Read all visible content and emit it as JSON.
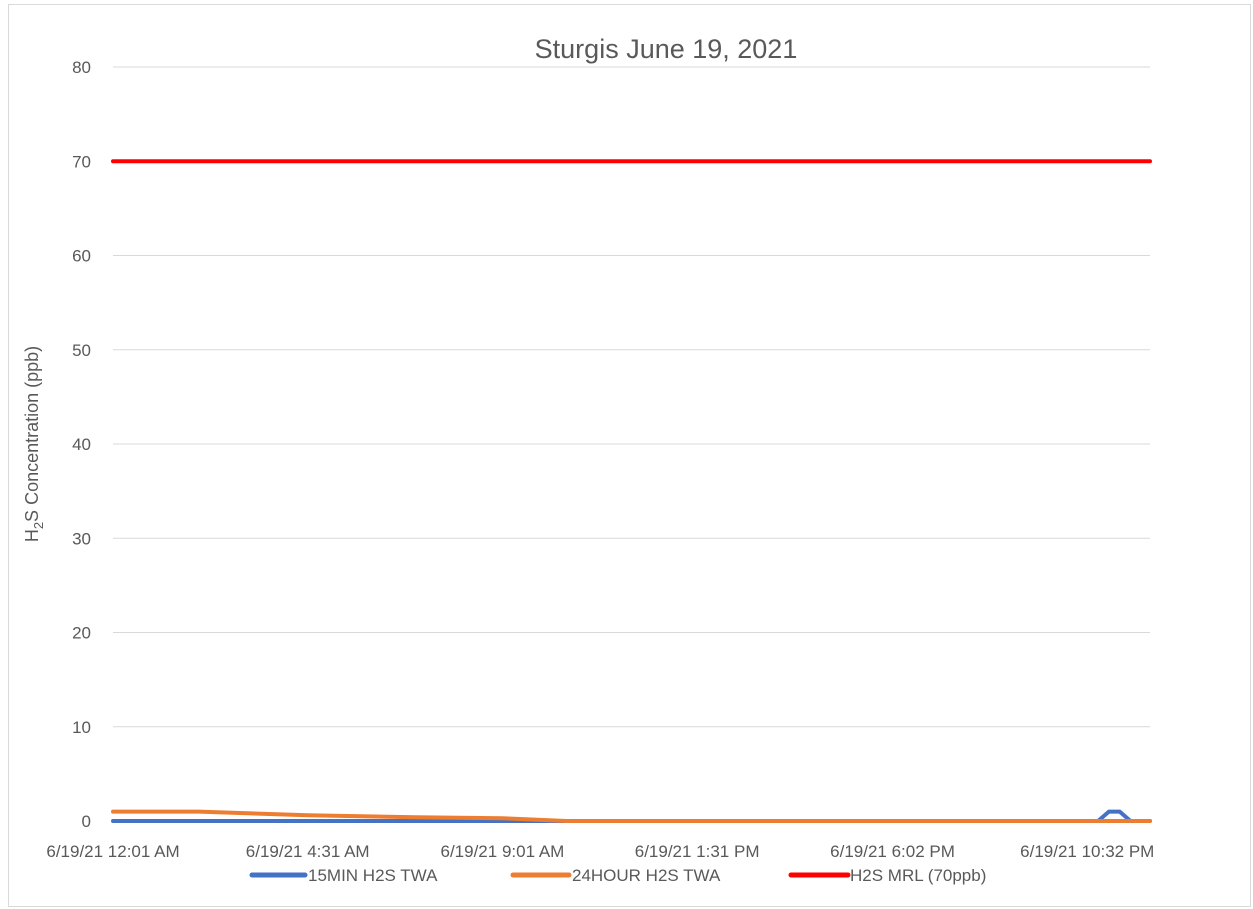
{
  "chart_data": {
    "type": "line",
    "title": "Sturgis June 19, 2021",
    "ylabel_parts": {
      "pre": "H",
      "sub": "2",
      "post": "S Concentration (ppb)"
    },
    "xlabel": "",
    "ylim": [
      0,
      80
    ],
    "yticks": [
      "0",
      "10",
      "20",
      "30",
      "40",
      "50",
      "60",
      "70",
      "80"
    ],
    "ytick_values": [
      0,
      10,
      20,
      30,
      40,
      50,
      60,
      70,
      80
    ],
    "xticks": [
      "6/19/21 12:01 AM",
      "6/19/21 4:31 AM",
      "6/19/21 9:01 AM",
      "6/19/21 1:31 PM",
      "6/19/21 6:02 PM",
      "6/19/21 10:32 PM"
    ],
    "xlim": [
      "6/19/21 12:01 AM",
      "6/19/21 11:59 PM"
    ],
    "grid": true,
    "legend_position": "bottom",
    "series": [
      {
        "name": "15MIN H2S TWA",
        "color": "#4472C4",
        "x": [
          "6/19/21 12:01 AM",
          "6/19/21 4:31 AM",
          "6/19/21 9:01 AM",
          "6/19/21 1:31 PM",
          "6/19/21 6:02 PM",
          "6/19/21 10:32 PM",
          "6/19/21 10:47 PM",
          "6/19/21 11:02 PM",
          "6/19/21 11:17 PM",
          "6/19/21 11:32 PM",
          "6/19/21 11:59 PM"
        ],
        "values": [
          0,
          0,
          0,
          0,
          0,
          0,
          0,
          1,
          1,
          0,
          0
        ]
      },
      {
        "name": "24HOUR H2S TWA",
        "color": "#ED7D31",
        "x": [
          "6/19/21 12:01 AM",
          "6/19/21 2:00 AM",
          "6/19/21 4:31 AM",
          "6/19/21 7:00 AM",
          "6/19/21 9:01 AM",
          "6/19/21 10:30 AM",
          "6/19/21 1:31 PM",
          "6/19/21 6:02 PM",
          "6/19/21 10:32 PM",
          "6/19/21 11:59 PM"
        ],
        "values": [
          1,
          1,
          0.6,
          0.4,
          0.3,
          0,
          0,
          0,
          0,
          0
        ]
      },
      {
        "name": "H2S MRL (70ppb)",
        "color": "#FF0000",
        "x": [
          "6/19/21 12:01 AM",
          "6/19/21 11:59 PM"
        ],
        "values": [
          70,
          70
        ]
      }
    ]
  }
}
